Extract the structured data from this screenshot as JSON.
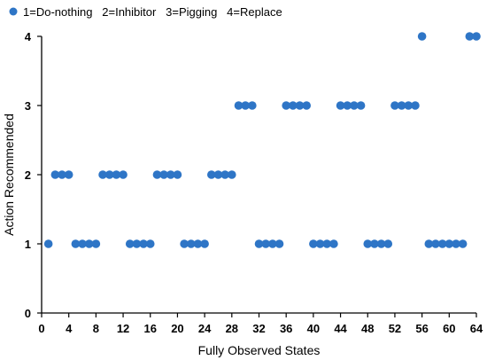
{
  "chart_data": {
    "type": "scatter",
    "legend": {
      "placement": "top-left",
      "text": "1=Do-nothing   2=Inhibitor   3=Pigging   4=Replace"
    },
    "xlabel": "Fully Observed States",
    "ylabel": "Action Recommended",
    "xlim": [
      0,
      64
    ],
    "ylim": [
      0,
      4
    ],
    "xticks": [
      "0",
      "4",
      "8",
      "12",
      "16",
      "20",
      "24",
      "28",
      "32",
      "36",
      "40",
      "44",
      "48",
      "52",
      "56",
      "60",
      "64"
    ],
    "yticks": [
      "0",
      "1",
      "2",
      "3",
      "4"
    ],
    "grid": false,
    "marker_color": "#2E75C6",
    "series": [
      {
        "x": [
          1,
          2,
          3,
          4,
          5,
          6,
          7,
          8,
          9,
          10,
          11,
          12,
          13,
          14,
          15,
          16,
          17,
          18,
          19,
          20,
          21,
          22,
          23,
          24,
          25,
          26,
          27,
          28,
          29,
          30,
          31,
          32,
          33,
          34,
          35,
          36,
          37,
          38,
          39,
          40,
          41,
          42,
          43,
          44,
          45,
          46,
          47,
          48,
          49,
          50,
          51,
          52,
          53,
          54,
          55,
          56,
          57,
          58,
          59,
          60,
          61,
          62,
          63,
          64
        ],
        "y": [
          1,
          2,
          2,
          2,
          1,
          1,
          1,
          1,
          2,
          2,
          2,
          2,
          1,
          1,
          1,
          1,
          2,
          2,
          2,
          2,
          1,
          1,
          1,
          1,
          2,
          2,
          2,
          2,
          3,
          3,
          3,
          1,
          1,
          1,
          1,
          3,
          3,
          3,
          3,
          1,
          1,
          1,
          1,
          3,
          3,
          3,
          3,
          1,
          1,
          1,
          1,
          3,
          3,
          3,
          3,
          4,
          1,
          1,
          1,
          1,
          1,
          1,
          4,
          4
        ]
      }
    ]
  }
}
